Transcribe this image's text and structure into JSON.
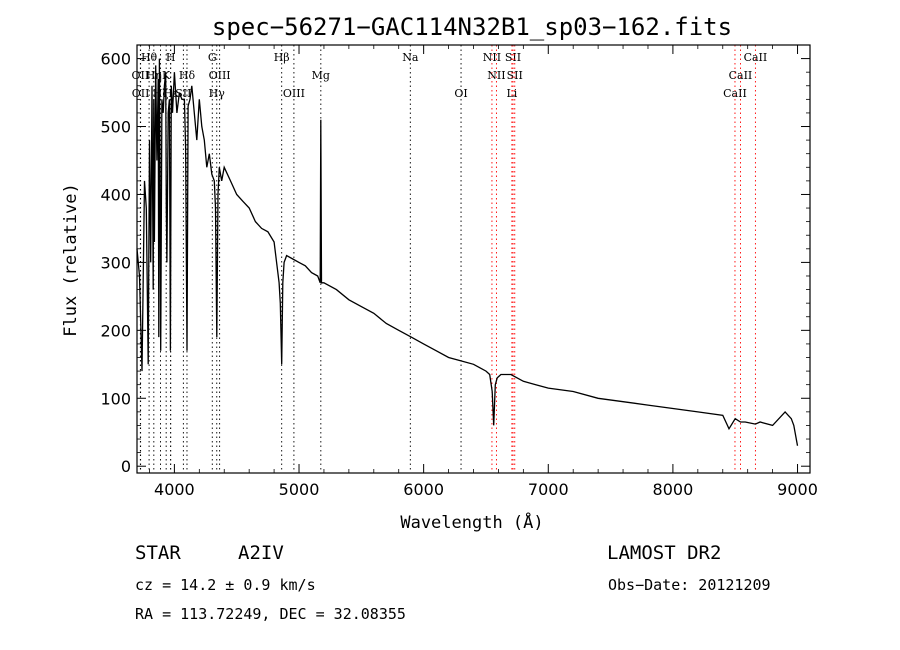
{
  "chart_data": {
    "type": "line",
    "title": "spec−56271−GAC114N32B1_sp03−162.fits",
    "xlabel": "Wavelength (Å)",
    "ylabel": "Flux (relative)",
    "xlim": [
      3700,
      9100
    ],
    "ylim": [
      -10,
      620
    ],
    "x_ticks": [
      4000,
      5000,
      6000,
      7000,
      8000,
      9000
    ],
    "y_ticks": [
      0,
      100,
      200,
      300,
      400,
      500,
      600
    ],
    "series": [
      {
        "color": "#000000",
        "x": [
          3700,
          3720,
          3740,
          3760,
          3775,
          3790,
          3800,
          3810,
          3820,
          3830,
          3835,
          3840,
          3850,
          3860,
          3870,
          3875,
          3880,
          3885,
          3890,
          3900,
          3910,
          3920,
          3930,
          3935,
          3940,
          3950,
          3960,
          3968,
          3975,
          3985,
          4000,
          4020,
          4040,
          4060,
          4080,
          4090,
          4101,
          4110,
          4125,
          4140,
          4160,
          4180,
          4200,
          4220,
          4240,
          4260,
          4280,
          4300,
          4320,
          4330,
          4340,
          4350,
          4360,
          4380,
          4400,
          4450,
          4500,
          4550,
          4600,
          4650,
          4700,
          4750,
          4800,
          4820,
          4840,
          4850,
          4861,
          4870,
          4880,
          4900,
          4950,
          5000,
          5050,
          5100,
          5150,
          5170,
          5175,
          5180,
          5200,
          5300,
          5400,
          5500,
          5600,
          5700,
          5800,
          5900,
          6000,
          6100,
          6200,
          6300,
          6400,
          6450,
          6500,
          6530,
          6550,
          6562,
          6575,
          6590,
          6620,
          6700,
          6800,
          6900,
          7000,
          7200,
          7400,
          7600,
          7800,
          8000,
          8200,
          8400,
          8450,
          8500,
          8542,
          8580,
          8662,
          8700,
          8800,
          8900,
          8950,
          8970,
          9000
        ],
        "y": [
          320,
          280,
          140,
          420,
          380,
          150,
          480,
          300,
          560,
          260,
          540,
          330,
          590,
          450,
          570,
          190,
          600,
          420,
          170,
          540,
          520,
          560,
          580,
          380,
          300,
          520,
          540,
          170,
          560,
          520,
          580,
          520,
          550,
          540,
          540,
          470,
          170,
          530,
          540,
          560,
          520,
          480,
          540,
          500,
          480,
          440,
          460,
          430,
          420,
          380,
          190,
          400,
          440,
          420,
          440,
          420,
          400,
          390,
          380,
          360,
          350,
          345,
          330,
          300,
          270,
          240,
          150,
          270,
          300,
          310,
          305,
          300,
          295,
          285,
          280,
          270,
          510,
          270,
          270,
          260,
          245,
          235,
          225,
          210,
          200,
          190,
          180,
          170,
          160,
          155,
          150,
          145,
          140,
          135,
          110,
          60,
          120,
          130,
          135,
          135,
          125,
          120,
          115,
          110,
          100,
          95,
          90,
          85,
          80,
          75,
          55,
          70,
          65,
          65,
          62,
          65,
          60,
          80,
          70,
          60,
          30
        ]
      }
    ],
    "line_markers": [
      {
        "label": "Hθ",
        "x": 3797,
        "row": 0,
        "color": "#000000"
      },
      {
        "label": "H",
        "x": 3970,
        "row": 0,
        "color": "#000000"
      },
      {
        "label": "G",
        "x": 4304,
        "row": 0,
        "color": "#000000"
      },
      {
        "label": "Hβ",
        "x": 4861,
        "row": 0,
        "color": "#000000"
      },
      {
        "label": "Na",
        "x": 5893,
        "row": 0,
        "color": "#000000"
      },
      {
        "label": "NII",
        "x": 6548,
        "row": 0,
        "color": "#ff0000"
      },
      {
        "label": "SII",
        "x": 6717,
        "row": 0,
        "color": "#ff0000"
      },
      {
        "label": "CaII",
        "x": 8662,
        "row": 0,
        "color": "#ff0000"
      },
      {
        "label": "OII",
        "x": 3727,
        "row": 1,
        "color": "#000000"
      },
      {
        "label": "Hη",
        "x": 3835,
        "row": 1,
        "color": "#000000"
      },
      {
        "label": "K",
        "x": 3934,
        "row": 1,
        "color": "#000000"
      },
      {
        "label": "Hδ",
        "x": 4101,
        "row": 1,
        "color": "#000000"
      },
      {
        "label": "OIII",
        "x": 4363,
        "row": 1,
        "color": "#000000"
      },
      {
        "label": "Mg",
        "x": 5175,
        "row": 1,
        "color": "#000000"
      },
      {
        "label": "NII",
        "x": 6584,
        "row": 1,
        "color": "#ff0000"
      },
      {
        "label": "SII",
        "x": 6731,
        "row": 1,
        "color": "#ff0000"
      },
      {
        "label": "CaII",
        "x": 8542,
        "row": 1,
        "color": "#ff0000"
      },
      {
        "label": "OII",
        "x": 3729,
        "row": 2,
        "color": "#000000"
      },
      {
        "label": "Hζ",
        "x": 3889,
        "row": 2,
        "color": "#000000"
      },
      {
        "label": "Hε",
        "x": 3970,
        "row": 2,
        "color": "#000000"
      },
      {
        "label": "SII",
        "x": 4072,
        "row": 2,
        "color": "#000000"
      },
      {
        "label": "Hγ",
        "x": 4340,
        "row": 2,
        "color": "#000000"
      },
      {
        "label": "OIII",
        "x": 4959,
        "row": 2,
        "color": "#000000"
      },
      {
        "label": "OI",
        "x": 6300,
        "row": 2,
        "color": "#000000"
      },
      {
        "label": "Li",
        "x": 6708,
        "row": 2,
        "color": "#ff0000"
      },
      {
        "label": "CaII",
        "x": 8498,
        "row": 2,
        "color": "#ff0000"
      }
    ]
  },
  "info": {
    "object_class": "STAR",
    "subclass": "A2IV",
    "survey": "LAMOST DR2",
    "cz": "cz = 14.2 ± 0.9 km/s",
    "obs_date": "Obs−Date: 20121209",
    "coords": "RA = 113.72249, DEC =  32.08355"
  }
}
